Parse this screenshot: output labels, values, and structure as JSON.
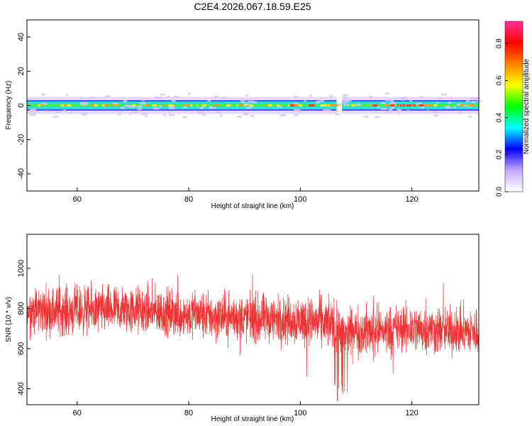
{
  "title": "C2E4.2026.067.18.59.E25",
  "chart_data": [
    {
      "type": "heatmap",
      "name": "spectrogram",
      "xlabel": "Height of straight line (km)",
      "ylabel": "Frequency (Hz)",
      "xlim": [
        51,
        132
      ],
      "ylim": [
        -50,
        50
      ],
      "xticks": [
        60,
        80,
        100,
        120
      ],
      "yticks": [
        -40,
        -20,
        0,
        20,
        40
      ],
      "xtick_labels": [
        "60",
        "80",
        "100",
        "120"
      ],
      "ytick_labels": [
        "-40",
        "-20",
        "0",
        "20",
        "40"
      ],
      "band_halfwidth_hz": 3,
      "gap_km": [
        106.5,
        107.5
      ],
      "colorbar": {
        "label": "Normalized spectral amplitude",
        "range": [
          0,
          0.92
        ],
        "ticks": [
          "0.0",
          "0.2",
          "0.4",
          "0.6",
          "0.8"
        ],
        "tick_values": [
          0.0,
          0.2,
          0.4,
          0.6,
          0.8
        ],
        "colors": [
          "#ffffff",
          "#c8a8ff",
          "#0000ff",
          "#00ffff",
          "#00ff00",
          "#ffff00",
          "#ff8000",
          "#ff0000",
          "#ff3399"
        ]
      }
    },
    {
      "type": "line",
      "name": "snr",
      "xlabel": "Height of straight line (km)",
      "ylabel": "SNR (10 * v/v)",
      "xlim": [
        51,
        132
      ],
      "ylim": [
        320,
        1170
      ],
      "xticks": [
        60,
        80,
        100,
        120
      ],
      "yticks": [
        400,
        600,
        800,
        1000
      ],
      "xtick_labels": [
        "60",
        "80",
        "100",
        "120"
      ],
      "ytick_labels": [
        "400",
        "600",
        "800",
        "1000"
      ],
      "color": "#ee3333",
      "mean_trend": [
        [
          51,
          790
        ],
        [
          70,
          790
        ],
        [
          85,
          760
        ],
        [
          100,
          740
        ],
        [
          106,
          720
        ],
        [
          108,
          680
        ],
        [
          120,
          700
        ],
        [
          132,
          680
        ]
      ],
      "noise_amplitude": 110,
      "series": [
        {
          "name": "SNR",
          "values": []
        }
      ]
    }
  ]
}
